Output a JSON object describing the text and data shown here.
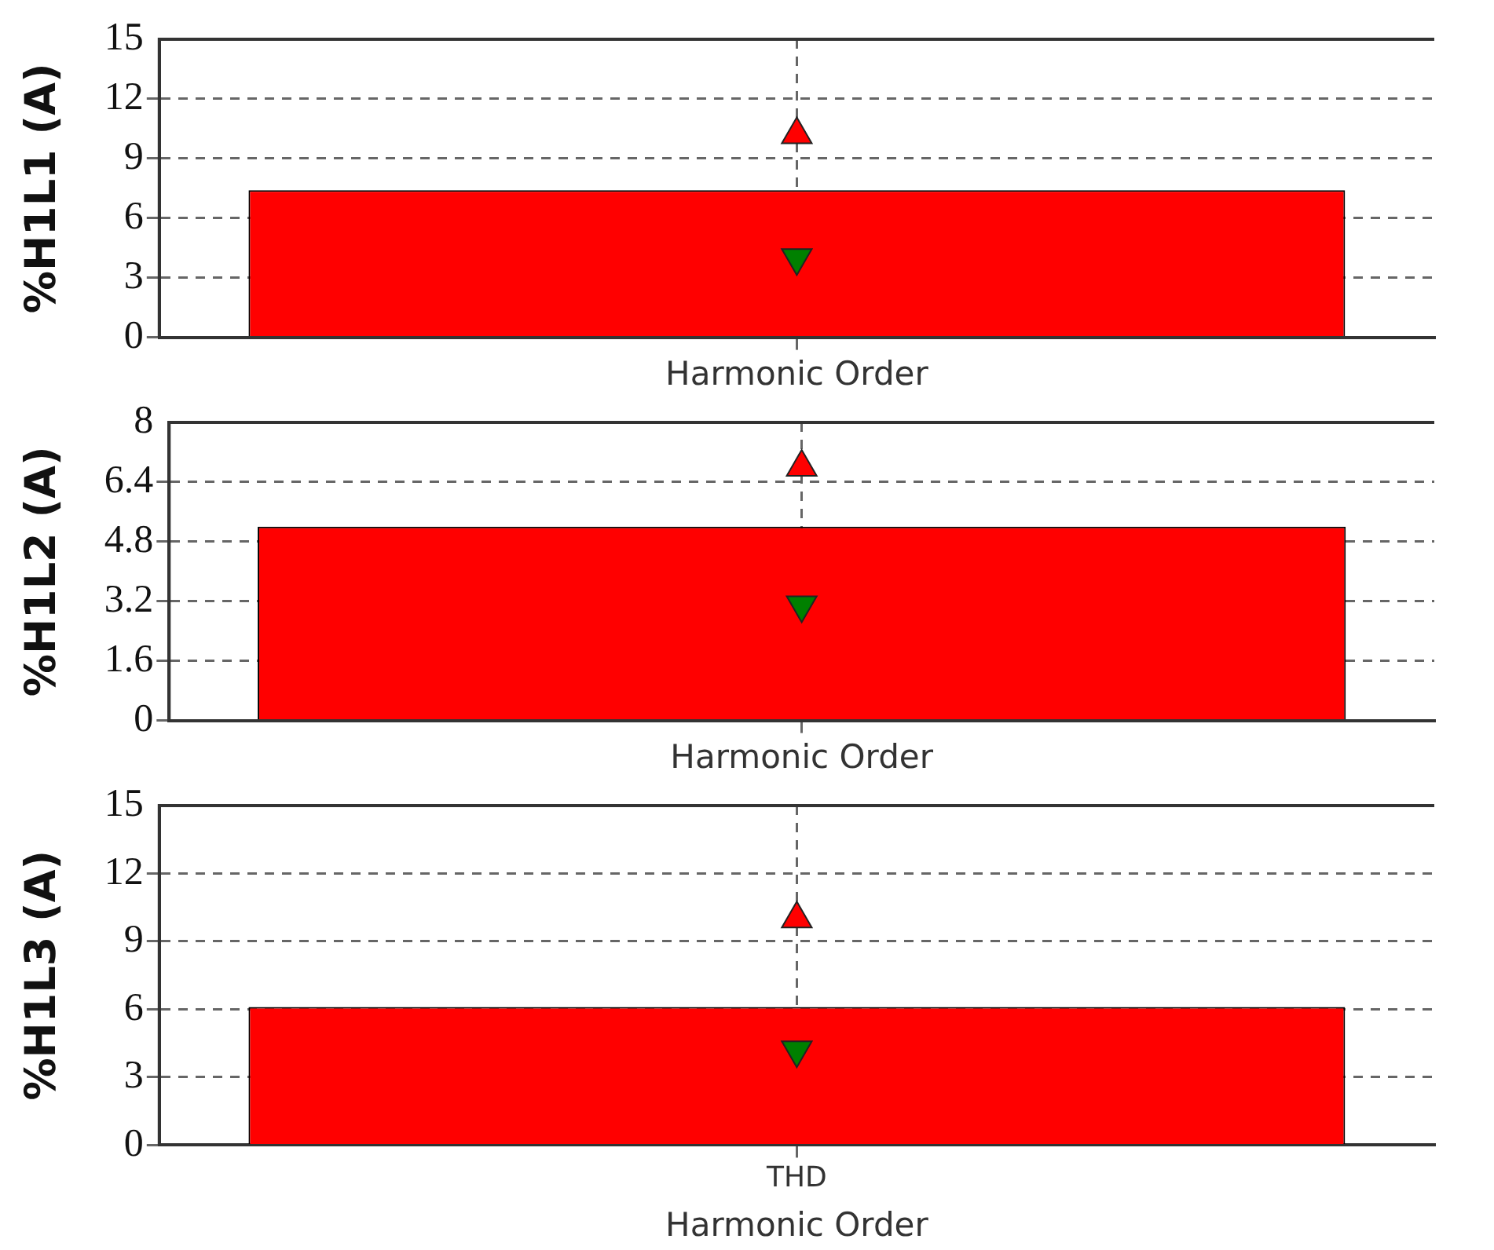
{
  "chart_data": [
    {
      "type": "bar",
      "categories": [
        null
      ],
      "xlabel": "Harmonic Order",
      "ylabel": "%H1L1 (A)",
      "ylim": [
        0,
        15
      ],
      "yticks": [
        0,
        3,
        6,
        9,
        12,
        15
      ],
      "grid": true,
      "series": [
        {
          "color": "#ff0000",
          "values": [
            7.4
          ]
        },
        {
          "type": "scatter",
          "color": "#ff0000",
          "marker": "triangle",
          "values": [
            10.2
          ]
        },
        {
          "type": "scatter",
          "color": "#008000",
          "marker": "triangle-down",
          "values": [
            4.0
          ]
        }
      ]
    },
    {
      "type": "bar",
      "categories": [
        null
      ],
      "xlabel": "Harmonic Order",
      "ylabel": "%H1L2 (A)",
      "ylim": [
        0,
        8
      ],
      "yticks": [
        0,
        1.6,
        3.2,
        4.8,
        6.4,
        8
      ],
      "grid": true,
      "series": [
        {
          "color": "#ff0000",
          "values": [
            5.2
          ]
        },
        {
          "type": "scatter",
          "color": "#ff0000",
          "marker": "triangle",
          "values": [
            6.8
          ]
        },
        {
          "type": "scatter",
          "color": "#008000",
          "marker": "triangle-down",
          "values": [
            3.1
          ]
        }
      ]
    },
    {
      "type": "bar",
      "categories": [
        "THD"
      ],
      "xlabel": "Harmonic Order",
      "ylabel": "%H1L3 (A)",
      "ylim": [
        0,
        15
      ],
      "yticks": [
        0,
        3,
        6,
        9,
        12,
        15
      ],
      "grid": true,
      "series": [
        {
          "color": "#ff0000",
          "values": [
            6.1
          ]
        },
        {
          "type": "scatter",
          "color": "#ff0000",
          "marker": "triangle",
          "values": [
            10.0
          ]
        },
        {
          "type": "scatter",
          "color": "#008000",
          "marker": "triangle-down",
          "values": [
            4.2
          ]
        }
      ]
    }
  ]
}
